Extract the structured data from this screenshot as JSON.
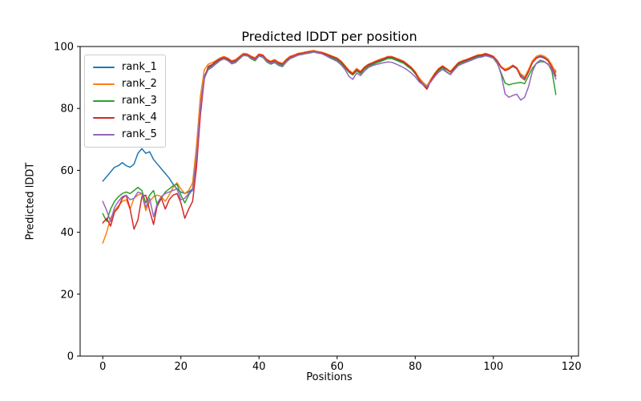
{
  "chart_data": {
    "type": "line",
    "title": "Predicted lDDT per position",
    "xlabel": "Positions",
    "ylabel": "Predicted lDDT",
    "xlim": [
      -5.8,
      121.8
    ],
    "ylim": [
      0,
      100
    ],
    "xticks": [
      0,
      20,
      40,
      60,
      80,
      100,
      120
    ],
    "yticks": [
      0,
      20,
      40,
      60,
      80,
      100
    ],
    "grid": false,
    "legend_position": "upper left",
    "x_start": 0,
    "x_step": 1,
    "n_points": 117,
    "series": [
      {
        "name": "rank_1",
        "color": "#1f77b4",
        "values": [
          56.5,
          58,
          59.5,
          61,
          61.5,
          62.5,
          61.5,
          61,
          62,
          65.5,
          67,
          65.5,
          66,
          63.5,
          62,
          60.5,
          59,
          57.5,
          55.5,
          54,
          53,
          52.5,
          53,
          54,
          65,
          81,
          90.5,
          93,
          94,
          95,
          95.8,
          96.3,
          95.8,
          95,
          95.3,
          96.3,
          97.3,
          97.2,
          96.4,
          96,
          97.2,
          96.8,
          95.4,
          94.8,
          95.3,
          94.5,
          94,
          95.4,
          96.4,
          96.8,
          97.4,
          97.6,
          97.9,
          98,
          98.3,
          98.1,
          97.9,
          97.4,
          96.9,
          96.4,
          95.9,
          94.9,
          93.4,
          92,
          91.2,
          92.4,
          91.6,
          93,
          93.9,
          94.4,
          95,
          95.4,
          95.9,
          96.4,
          96.4,
          95.9,
          95.4,
          94.9,
          93.9,
          93,
          91.5,
          89.5,
          88,
          87,
          89.2,
          91,
          92.5,
          93.4,
          92.6,
          91.8,
          93,
          94.4,
          95,
          95.4,
          96,
          96.4,
          96.9,
          97,
          97.4,
          97,
          96.5,
          95.2,
          93.2,
          92.4,
          92.8,
          93.6,
          92.8,
          90.8,
          89.8,
          92.2,
          95,
          96.4,
          96.9,
          96.5,
          95.6,
          93.6,
          92
        ]
      },
      {
        "name": "rank_2",
        "color": "#ff7f0e",
        "values": [
          36.5,
          40,
          44.5,
          47,
          48.5,
          50,
          50.5,
          47.5,
          51,
          52,
          52.5,
          47,
          50,
          51.5,
          52,
          51.5,
          50,
          52,
          54.5,
          56,
          54,
          52.5,
          53.5,
          56,
          68,
          84,
          92.5,
          94.3,
          94.8,
          95.5,
          96.3,
          96.8,
          96.3,
          95.4,
          95.8,
          96.8,
          97.8,
          97.6,
          96.9,
          96.4,
          97.6,
          97.3,
          95.9,
          95.3,
          95.8,
          95,
          94.6,
          95.9,
          96.9,
          97.3,
          97.8,
          98,
          98.3,
          98.5,
          98.7,
          98.4,
          98.2,
          97.8,
          97.3,
          96.8,
          96.3,
          95.3,
          93.9,
          92.4,
          91.5,
          92.9,
          92,
          93.4,
          94.3,
          94.8,
          95.4,
          95.9,
          96.3,
          96.8,
          96.8,
          96.3,
          95.8,
          95.3,
          94.3,
          93.3,
          91.9,
          89.9,
          88.4,
          87.3,
          89.5,
          91.4,
          92.9,
          93.8,
          92.9,
          92,
          93.4,
          94.8,
          95.4,
          95.8,
          96.3,
          96.8,
          97.3,
          97.4,
          97.8,
          97.4,
          96.9,
          95.5,
          93.5,
          92.7,
          93.2,
          94,
          93.2,
          91.2,
          90.2,
          92.6,
          95.4,
          96.8,
          97.3,
          96.9,
          96,
          94,
          91.5
        ]
      },
      {
        "name": "rank_3",
        "color": "#2ca02c",
        "values": [
          46,
          43.5,
          47.5,
          50,
          51.5,
          52.5,
          53,
          52.5,
          53.5,
          54.5,
          53.5,
          49.5,
          52,
          53.5,
          48.5,
          51,
          53,
          54,
          55,
          55.5,
          52,
          49.5,
          52,
          54,
          64,
          80,
          90,
          92.8,
          93.5,
          94.6,
          95.6,
          96.1,
          95.5,
          94.4,
          94.8,
          96,
          97.1,
          97,
          96,
          95.4,
          96.9,
          96.5,
          95,
          94.3,
          94.8,
          93.9,
          93.5,
          95,
          96.1,
          96.6,
          97.2,
          97.4,
          97.7,
          97.9,
          98.2,
          97.9,
          97.7,
          97.2,
          96.6,
          96.1,
          95.6,
          94.6,
          93.1,
          91.7,
          90.8,
          92.1,
          91.2,
          92.7,
          93.6,
          94.1,
          94.7,
          95.1,
          95.6,
          96.1,
          96.1,
          95.6,
          95.1,
          94.6,
          93.6,
          92.7,
          91.2,
          89.2,
          87.7,
          86.7,
          88.9,
          90.7,
          92.2,
          93.1,
          91.9,
          91,
          92.7,
          94.1,
          94.7,
          95.1,
          95.7,
          96.1,
          96.6,
          96.7,
          97.1,
          96.7,
          96.2,
          94.5,
          91.5,
          88.2,
          87.6,
          88,
          88.2,
          88.4,
          88,
          90.5,
          93,
          94.5,
          95.1,
          95,
          94.4,
          92,
          84.5
        ]
      },
      {
        "name": "rank_4",
        "color": "#d62728",
        "values": [
          43,
          44.5,
          42,
          46.5,
          48,
          51,
          52,
          47.5,
          41,
          44,
          51.5,
          52,
          47,
          42.5,
          49,
          51,
          47.5,
          50.5,
          52,
          52.5,
          49.5,
          44.5,
          47.5,
          50,
          61,
          78,
          89.5,
          93.6,
          94.2,
          95.2,
          96,
          96.5,
          96,
          95.1,
          95.5,
          96.5,
          97.5,
          97.4,
          96.6,
          96.1,
          97.4,
          97.1,
          95.6,
          95,
          95.5,
          94.7,
          94.3,
          95.6,
          96.6,
          97,
          97.6,
          97.8,
          98.1,
          98.3,
          98.5,
          98.2,
          98,
          97.6,
          97.1,
          96.6,
          96.1,
          95.1,
          93.6,
          92.1,
          91.1,
          92.6,
          91.7,
          93.2,
          94.1,
          94.6,
          95.2,
          95.6,
          96.1,
          96.6,
          96.6,
          96.1,
          95.6,
          95.1,
          94.1,
          93.1,
          91.6,
          89.3,
          87.6,
          86.2,
          89,
          91.1,
          92.7,
          93.6,
          92.7,
          91.7,
          93.2,
          94.6,
          95.2,
          95.6,
          96.1,
          96.6,
          97.1,
          97.2,
          97.6,
          97.2,
          96.7,
          95.3,
          93.3,
          92.2,
          92.7,
          93.8,
          92.9,
          90.2,
          89.2,
          91.8,
          94.8,
          96.2,
          96.7,
          96.3,
          95.4,
          93.2,
          90.5
        ]
      },
      {
        "name": "rank_5",
        "color": "#9467bd",
        "values": [
          50,
          47,
          43.5,
          48,
          50,
          51.5,
          52,
          50.5,
          51,
          53,
          52.5,
          48,
          51,
          45,
          49.5,
          51.5,
          52.5,
          53,
          53.5,
          54,
          50.5,
          51,
          52.5,
          53.5,
          64.5,
          80.5,
          89.8,
          92.5,
          93.3,
          94.4,
          95.4,
          96,
          95.4,
          94.6,
          95,
          96.1,
          97.2,
          97,
          96.2,
          95.7,
          97,
          96.7,
          95.2,
          94.6,
          95.1,
          94.2,
          93.8,
          95.2,
          96.2,
          96.7,
          97.2,
          97.5,
          97.8,
          98,
          98.3,
          98,
          97.7,
          97.1,
          96.4,
          95.8,
          95.2,
          94.1,
          92.6,
          90.4,
          89.4,
          91.4,
          90.6,
          92.1,
          93.2,
          93.8,
          94.2,
          94.5,
          94.8,
          95,
          94.9,
          94.4,
          93.8,
          93.2,
          92.4,
          91.4,
          90.2,
          88.6,
          87.6,
          87.1,
          88.6,
          90.3,
          91.7,
          92.6,
          91.7,
          90.9,
          92.4,
          93.8,
          94.4,
          94.9,
          95.4,
          95.9,
          96.4,
          96.6,
          97,
          96.7,
          96.3,
          94.8,
          91,
          84.7,
          83.6,
          84.2,
          84.6,
          82.7,
          83.6,
          87,
          92,
          94.6,
          95.6,
          95.2,
          94.2,
          92.6,
          89.5
        ]
      }
    ]
  }
}
